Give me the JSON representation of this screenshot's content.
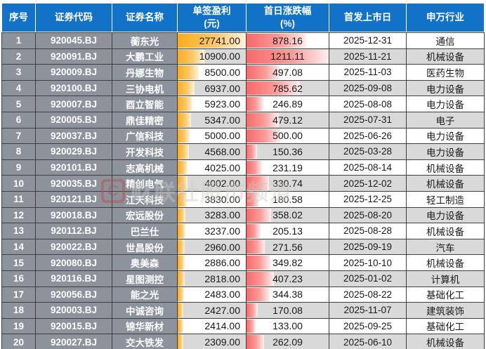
{
  "watermark": {
    "logo": "C",
    "text": "财联社股市频道"
  },
  "colors": {
    "header_bg": "#1272C8",
    "header_text": "#FFFFFF",
    "label_bg": "#8C939D",
    "row_bg": "#FFFFFF",
    "row_alt_bg": "#D9D9D9",
    "grid_border": "#3F3F3F",
    "value_text": "#1A1A1A",
    "profit_bar": "#FBAC1D",
    "pct_bar": "#F8696B"
  },
  "chart_data": {
    "type": "table",
    "title": "",
    "keys": [
      "idx",
      "code",
      "name",
      "profit",
      "pct",
      "date",
      "industry"
    ],
    "headers": [
      [
        "序号"
      ],
      [
        "证券代码"
      ],
      [
        "证券名称"
      ],
      [
        "单签盈利",
        "(元)"
      ],
      [
        "首日涨跌幅",
        "(%)"
      ],
      [
        "首发上市日"
      ],
      [
        "申万行业"
      ]
    ],
    "columns": [
      "序号",
      "证券代码",
      "证券名称",
      "单签盈利(元)",
      "首日涨跌幅(%)",
      "首发上市日",
      "申万行业"
    ],
    "databars": {
      "profit": {
        "column": "单签盈利(元)",
        "color": "#FBAC1D",
        "max": 27741
      },
      "pct": {
        "column": "首日涨跌幅(%)",
        "color": "#F8696B",
        "max": 1211.11
      }
    },
    "rows": [
      {
        "idx": "1",
        "code": "920045.BJ",
        "name": "蘅东光",
        "profit": "27741.00",
        "pct": "878.16",
        "date": "2025-12-31",
        "industry": "通信"
      },
      {
        "idx": "2",
        "code": "920091.BJ",
        "name": "大鹏工业",
        "profit": "10900.00",
        "pct": "1211.11",
        "date": "2025-11-21",
        "industry": "机械设备"
      },
      {
        "idx": "3",
        "code": "920009.BJ",
        "name": "丹娜生物",
        "profit": "8500.00",
        "pct": "497.08",
        "date": "2025-11-03",
        "industry": "医药生物"
      },
      {
        "idx": "4",
        "code": "920100.BJ",
        "name": "三协电机",
        "profit": "6937.00",
        "pct": "785.62",
        "date": "2025-09-08",
        "industry": "电力设备"
      },
      {
        "idx": "5",
        "code": "920007.BJ",
        "name": "酉立智能",
        "profit": "5923.00",
        "pct": "246.89",
        "date": "2025-08-08",
        "industry": "电力设备"
      },
      {
        "idx": "6",
        "code": "920005.BJ",
        "name": "鼎佳精密",
        "profit": "5347.00",
        "pct": "479.12",
        "date": "2025-07-31",
        "industry": "电子"
      },
      {
        "idx": "7",
        "code": "920037.BJ",
        "name": "广信科技",
        "profit": "5000.00",
        "pct": "500.00",
        "date": "2025-06-26",
        "industry": "电力设备"
      },
      {
        "idx": "8",
        "code": "920029.BJ",
        "name": "开发科技",
        "profit": "4568.00",
        "pct": "150.36",
        "date": "2025-03-28",
        "industry": "电力设备"
      },
      {
        "idx": "9",
        "code": "920101.BJ",
        "name": "志高机械",
        "profit": "4025.00",
        "pct": "231.19",
        "date": "2025-08-14",
        "industry": "机械设备"
      },
      {
        "idx": "10",
        "code": "920035.BJ",
        "name": "精创电气",
        "profit": "4002.00",
        "pct": "330.74",
        "date": "2025-12-02",
        "industry": "机械设备"
      },
      {
        "idx": "11",
        "code": "920121.BJ",
        "name": "江天科技",
        "profit": "3830.00",
        "pct": "180.58",
        "date": "2025-12-25",
        "industry": "轻工制造"
      },
      {
        "idx": "12",
        "code": "920018.BJ",
        "name": "宏远股份",
        "profit": "3283.00",
        "pct": "358.02",
        "date": "2025-08-20",
        "industry": "电力设备"
      },
      {
        "idx": "13",
        "code": "920112.BJ",
        "name": "巴兰仕",
        "profit": "3237.00",
        "pct": "205.13",
        "date": "2025-08-28",
        "industry": "机械设备"
      },
      {
        "idx": "14",
        "code": "920022.BJ",
        "name": "世昌股份",
        "profit": "2960.00",
        "pct": "271.56",
        "date": "2025-09-19",
        "industry": "汽车"
      },
      {
        "idx": "15",
        "code": "920080.BJ",
        "name": "奥美森",
        "profit": "2886.00",
        "pct": "349.82",
        "date": "2025-10-10",
        "industry": "机械设备"
      },
      {
        "idx": "16",
        "code": "920116.BJ",
        "name": "星图测控",
        "profit": "2818.00",
        "pct": "407.23",
        "date": "2025-01-02",
        "industry": "计算机"
      },
      {
        "idx": "17",
        "code": "920056.BJ",
        "name": "能之光",
        "profit": "2483.00",
        "pct": "344.38",
        "date": "2025-08-22",
        "industry": "基础化工"
      },
      {
        "idx": "18",
        "code": "920003.BJ",
        "name": "中诚咨询",
        "profit": "2427.00",
        "pct": "170.08",
        "date": "2025-11-07",
        "industry": "建筑装饰"
      },
      {
        "idx": "19",
        "code": "920015.BJ",
        "name": "锦华新材",
        "profit": "2414.00",
        "pct": "133.00",
        "date": "2025-09-25",
        "industry": "基础化工"
      },
      {
        "idx": "20",
        "code": "920027.BJ",
        "name": "交大铁发",
        "profit": "2309.00",
        "pct": "262.09",
        "date": "2025-06-10",
        "industry": "机械设备"
      }
    ]
  }
}
